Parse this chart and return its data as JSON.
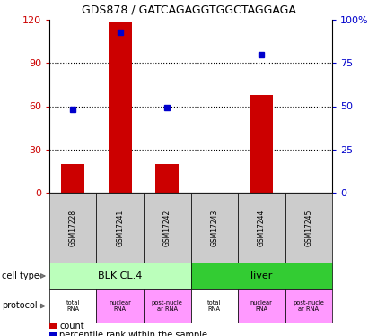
{
  "title": "GDS878 / GATCAGAGGTGGCTAGGAGA",
  "samples": [
    "GSM17228",
    "GSM17241",
    "GSM17242",
    "GSM17243",
    "GSM17244",
    "GSM17245"
  ],
  "counts": [
    20,
    118,
    20,
    0,
    68,
    0
  ],
  "percentiles": [
    48,
    93,
    49,
    null,
    80,
    null
  ],
  "ylim_left": [
    0,
    120
  ],
  "ylim_right": [
    0,
    100
  ],
  "yticks_left": [
    0,
    30,
    60,
    90,
    120
  ],
  "yticks_right": [
    0,
    25,
    50,
    75,
    100
  ],
  "ytick_labels_left": [
    "0",
    "30",
    "60",
    "90",
    "120"
  ],
  "ytick_labels_right": [
    "0",
    "25",
    "50",
    "75",
    "100%"
  ],
  "bar_color": "#cc0000",
  "dot_color": "#0000cc",
  "cell_type_groups": [
    {
      "label": "BLK CL.4",
      "start": 0,
      "end": 3,
      "color": "#bbffbb"
    },
    {
      "label": "liver",
      "start": 3,
      "end": 6,
      "color": "#33cc33"
    }
  ],
  "prot_labels": [
    "total\nRNA",
    "nuclear\nRNA",
    "post-nucle\nar RNA",
    "total\nRNA",
    "nuclear\nRNA",
    "post-nucle\nar RNA"
  ],
  "prot_colors": [
    "#ffffff",
    "#ff99ff",
    "#ff99ff",
    "#ffffff",
    "#ff99ff",
    "#ff99ff"
  ],
  "left_axis_color": "#cc0000",
  "right_axis_color": "#0000cc",
  "sample_bg_color": "#cccccc",
  "cell_type_label": "cell type",
  "protocol_label": "protocol",
  "legend_count_label": "count",
  "legend_pct_label": "percentile rank within the sample"
}
